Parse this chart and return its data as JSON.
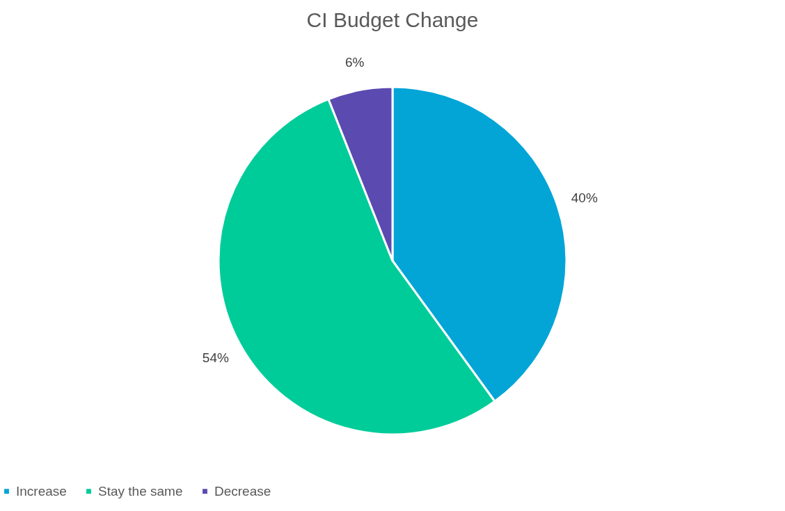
{
  "chart_data": {
    "type": "pie",
    "title": "CI Budget Change",
    "categories": [
      "Increase",
      "Stay the same",
      "Decrease"
    ],
    "values": [
      40,
      54,
      6
    ],
    "colors": [
      "#02a5d6",
      "#00cc99",
      "#5b4ab0"
    ],
    "value_labels": [
      "40%",
      "54%",
      "6%"
    ],
    "legend": "bottom"
  }
}
